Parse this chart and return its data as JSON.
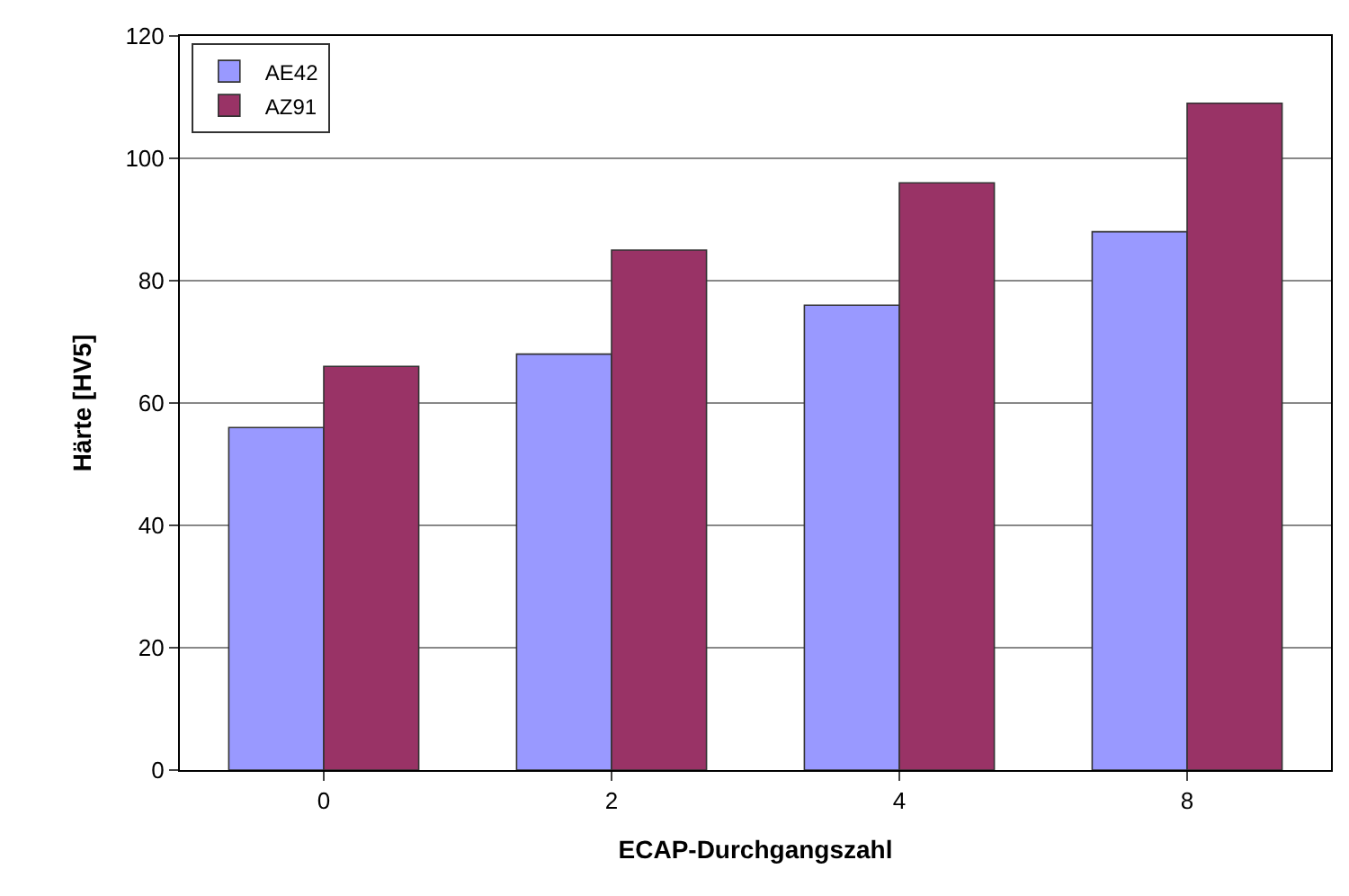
{
  "chart_data": {
    "type": "bar",
    "xlabel": "ECAP-Durchgangszahl",
    "ylabel": "Härte [HV5]",
    "categories": [
      "0",
      "2",
      "4",
      "8"
    ],
    "series": [
      {
        "name": "AE42",
        "color": "#9999ff",
        "values": [
          56,
          68,
          76,
          88
        ]
      },
      {
        "name": "AZ91",
        "color": "#993366",
        "values": [
          66,
          85,
          96,
          109
        ]
      }
    ],
    "ylim": [
      0,
      120
    ],
    "yticks": [
      0,
      20,
      40,
      60,
      80,
      100,
      120
    ],
    "grid": "y",
    "legend": "top left"
  }
}
